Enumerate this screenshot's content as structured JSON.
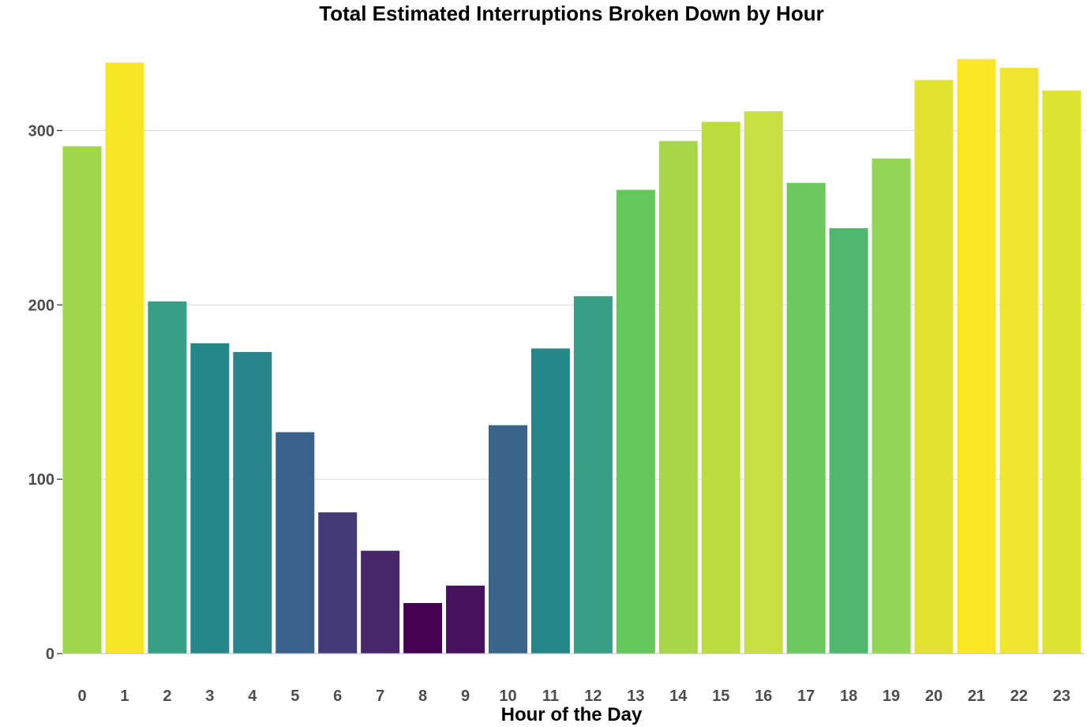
{
  "chart_data": {
    "type": "bar",
    "title": "Total Estimated Interruptions Broken Down by Hour",
    "xlabel": "Hour of the Day",
    "ylabel": "",
    "categories": [
      "0",
      "1",
      "2",
      "3",
      "4",
      "5",
      "6",
      "7",
      "8",
      "9",
      "10",
      "11",
      "12",
      "13",
      "14",
      "15",
      "16",
      "17",
      "18",
      "19",
      "20",
      "21",
      "22",
      "23"
    ],
    "values": [
      291,
      339,
      202,
      178,
      173,
      127,
      81,
      59,
      29,
      39,
      131,
      175,
      205,
      266,
      294,
      305,
      311,
      270,
      244,
      284,
      329,
      341,
      336,
      323
    ],
    "colors": [
      "#a0d64b",
      "#f6e626",
      "#35a086",
      "#24888a",
      "#29858d",
      "#3b628a",
      "#433a77",
      "#47276a",
      "#440154",
      "#46115f",
      "#39658b",
      "#24888a",
      "#389f86",
      "#65c85a",
      "#a8d84a",
      "#bcdd3f",
      "#c7df40",
      "#6dc95e",
      "#50b86c",
      "#94d457",
      "#e1e330",
      "#fbe723",
      "#f0e530",
      "#dde233"
    ],
    "yticks": [
      0,
      100,
      200,
      300
    ],
    "ylim": [
      0,
      345
    ],
    "grid": true,
    "legend": "none"
  }
}
